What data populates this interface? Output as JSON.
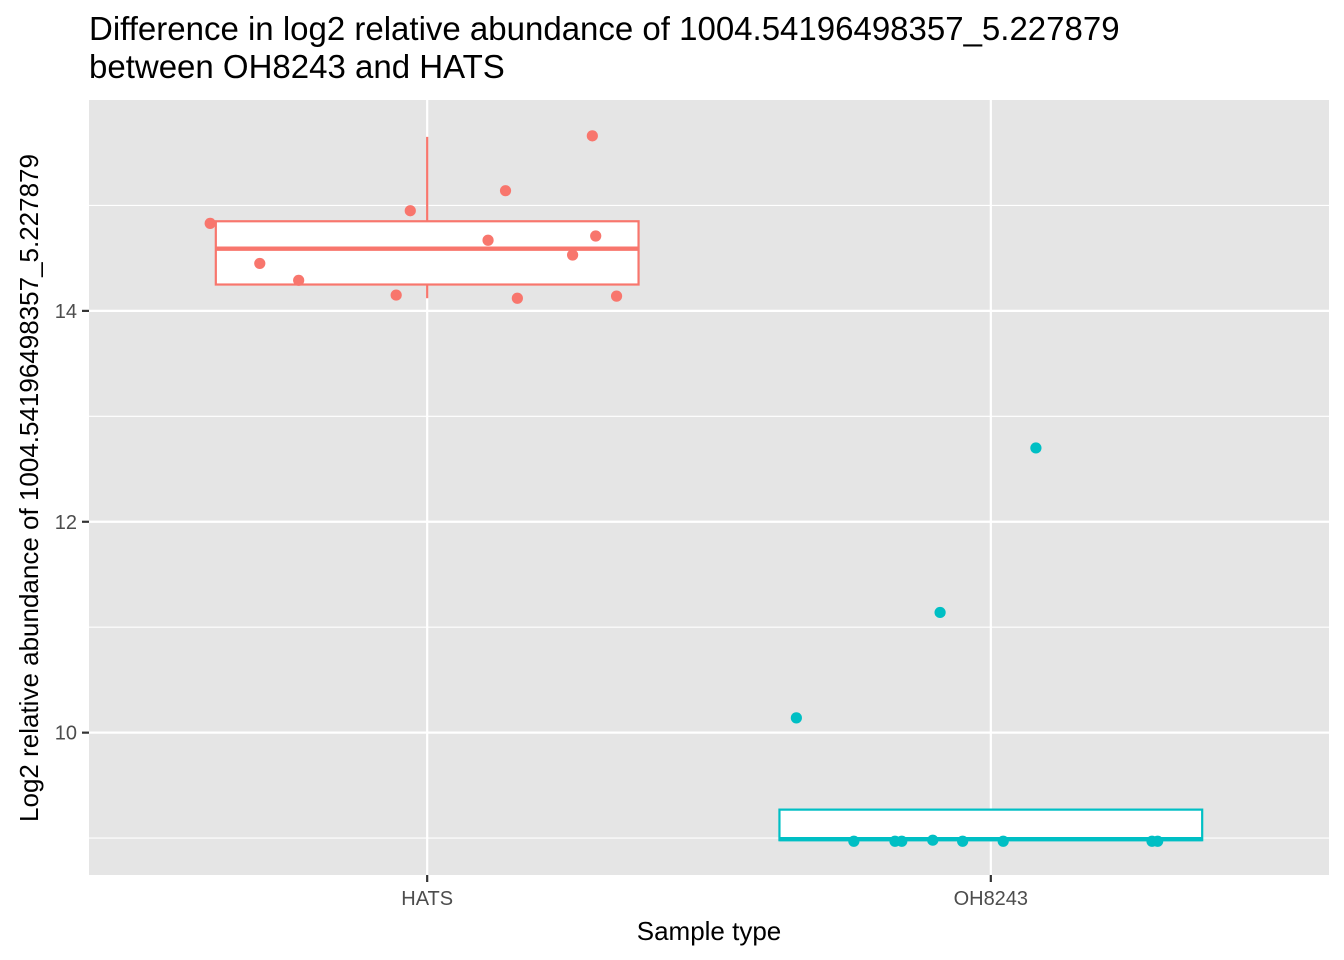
{
  "chart_data": {
    "type": "boxplot",
    "title_lines": [
      "Difference in log2 relative abundance of 1004.54196498357_5.227879",
      "between OH8243 and HATS"
    ],
    "xlabel": "Sample type",
    "ylabel": "Log2 relative abundance of 1004.54196498357_5.227879",
    "categories": [
      "HATS",
      "OH8243"
    ],
    "ylim": [
      8.65,
      16.0
    ],
    "yticks": [
      10,
      12,
      14
    ],
    "ytick_labels": [
      "10",
      "12",
      "14"
    ],
    "grid": true,
    "legend": "none",
    "colors": {
      "HATS": "#F8766D",
      "OH8243": "#00BFC4",
      "panel": "#E5E5E5",
      "grid": "#FFFFFF"
    },
    "boxes": [
      {
        "category": "HATS",
        "q1": 14.25,
        "median": 14.59,
        "q3": 14.85,
        "whisker_low": 14.12,
        "whisker_high": 15.65
      },
      {
        "category": "OH8243",
        "q1": 8.98,
        "median": 8.99,
        "q3": 9.27,
        "whisker_low": 8.97,
        "whisker_high": 9.27
      }
    ],
    "series": [
      {
        "category": "HATS",
        "points": [
          {
            "x": -0.385,
            "y": 14.83
          },
          {
            "x": -0.297,
            "y": 14.45
          },
          {
            "x": -0.228,
            "y": 14.29
          },
          {
            "x": -0.055,
            "y": 14.15
          },
          {
            "x": -0.03,
            "y": 14.95
          },
          {
            "x": 0.108,
            "y": 14.67
          },
          {
            "x": 0.139,
            "y": 15.14
          },
          {
            "x": 0.16,
            "y": 14.12
          },
          {
            "x": 0.258,
            "y": 14.53
          },
          {
            "x": 0.293,
            "y": 15.66
          },
          {
            "x": 0.299,
            "y": 14.71
          },
          {
            "x": 0.336,
            "y": 14.14
          }
        ]
      },
      {
        "category": "OH8243",
        "points": [
          {
            "x": -0.345,
            "y": 10.14
          },
          {
            "x": -0.243,
            "y": 8.97
          },
          {
            "x": -0.17,
            "y": 8.97
          },
          {
            "x": -0.158,
            "y": 8.97
          },
          {
            "x": -0.103,
            "y": 8.98
          },
          {
            "x": -0.09,
            "y": 11.14
          },
          {
            "x": -0.05,
            "y": 8.97
          },
          {
            "x": 0.022,
            "y": 8.97
          },
          {
            "x": 0.08,
            "y": 12.7
          },
          {
            "x": 0.286,
            "y": 8.97
          },
          {
            "x": 0.296,
            "y": 8.97
          }
        ]
      }
    ]
  }
}
